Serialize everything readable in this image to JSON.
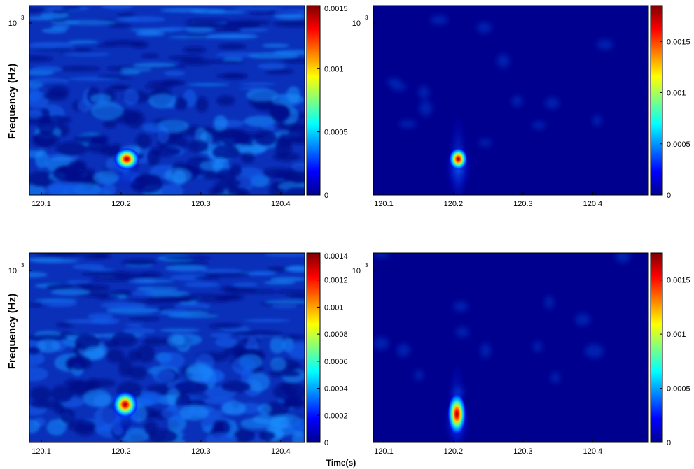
{
  "figure": {
    "ylabel": "Frequency (Hz)",
    "xlabel": "Time(s)",
    "ytick_base": "10",
    "ytick_exp": "3"
  },
  "colormap": "jet",
  "chart_data": [
    {
      "type": "heatmap",
      "panel": "top-left",
      "x_tick_labels": [
        "120.1",
        "120.2",
        "120.3",
        "120.4"
      ],
      "x_ticks": [
        120.1,
        120.2,
        120.3,
        120.4
      ],
      "xlim": [
        120.085,
        120.43
      ],
      "colorbar": {
        "ticks": [
          0,
          0.0005,
          0.001,
          0.0015
        ],
        "tick_labels": [
          "0",
          "0.0005",
          "0.001",
          "0.0015"
        ],
        "range": [
          0,
          0.0015
        ]
      },
      "peak": {
        "time": 120.207,
        "value": 0.0015
      },
      "background": "noisy"
    },
    {
      "type": "heatmap",
      "panel": "top-right",
      "x_tick_labels": [
        "120.1",
        "120.2",
        "120.3",
        "120.4"
      ],
      "x_ticks": [
        120.1,
        120.2,
        120.3,
        120.4
      ],
      "xlim": [
        120.085,
        120.48
      ],
      "colorbar": {
        "ticks": [
          0,
          0.0005,
          0.001,
          0.0015
        ],
        "tick_labels": [
          "0",
          "0.0005",
          "0.001",
          "0.0015"
        ],
        "range": [
          0,
          0.00185
        ]
      },
      "peak": {
        "time": 120.207,
        "value": 0.00185
      },
      "background": "clean"
    },
    {
      "type": "heatmap",
      "panel": "bottom-left",
      "x_tick_labels": [
        "120.1",
        "120.2",
        "120.3",
        "120.4"
      ],
      "x_ticks": [
        120.1,
        120.2,
        120.3,
        120.4
      ],
      "xlim": [
        120.085,
        120.43
      ],
      "colorbar": {
        "ticks": [
          0,
          0.0002,
          0.0004,
          0.0006,
          0.0008,
          0.001,
          0.0012,
          0.0014
        ],
        "tick_labels": [
          "0",
          "0.0002",
          "0.0004",
          "0.0006",
          "0.0008",
          "0.001",
          "0.0012",
          "0.0014"
        ],
        "range": [
          0,
          0.0014
        ]
      },
      "peak": {
        "time": 120.205,
        "value": 0.0014
      },
      "background": "noisy"
    },
    {
      "type": "heatmap",
      "panel": "bottom-right",
      "x_tick_labels": [
        "120.1",
        "120.2",
        "120.3",
        "120.4"
      ],
      "x_ticks": [
        120.1,
        120.2,
        120.3,
        120.4
      ],
      "xlim": [
        120.085,
        120.48
      ],
      "colorbar": {
        "ticks": [
          0,
          0.0005,
          0.001,
          0.0015
        ],
        "tick_labels": [
          "0",
          "0.0005",
          "0.001",
          "0.0015"
        ],
        "range": [
          0,
          0.00175
        ]
      },
      "peak": {
        "time": 120.205,
        "value": 0.00175
      },
      "background": "clean"
    }
  ]
}
